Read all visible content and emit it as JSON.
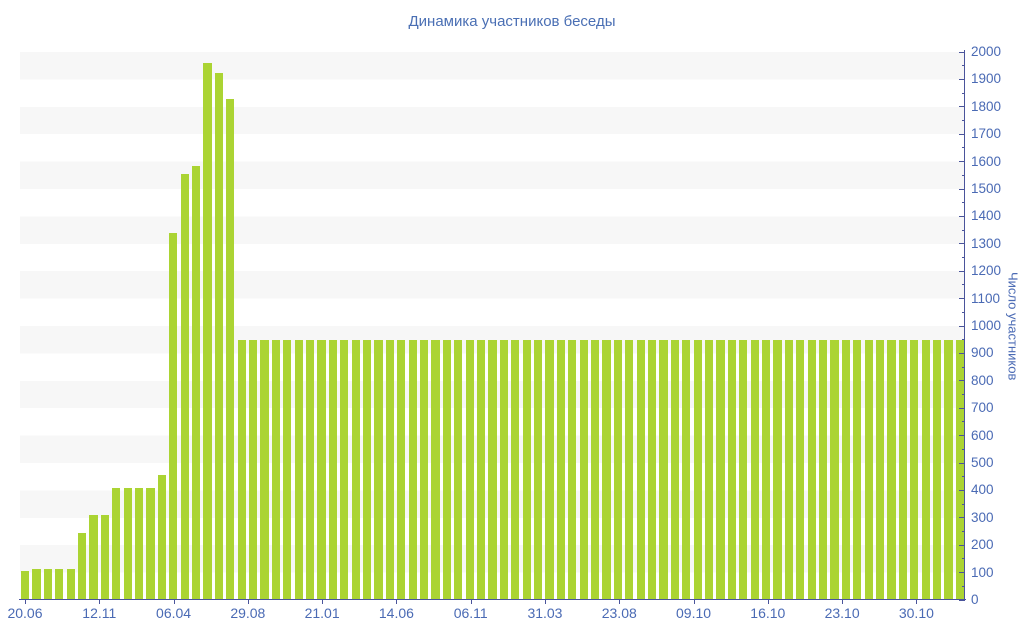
{
  "chart_data": {
    "type": "bar",
    "title": "Динамика участников беседы",
    "xlabel": "",
    "ylabel": "Число участников",
    "ylim": [
      0,
      2000
    ],
    "y_ticks": [
      0,
      100,
      200,
      300,
      400,
      500,
      600,
      700,
      800,
      900,
      1000,
      1100,
      1200,
      1300,
      1400,
      1500,
      1600,
      1700,
      1800,
      1900,
      2000
    ],
    "y_minor_tick_step": 50,
    "grid": "alternating-horizontal-bands",
    "legend": "none",
    "y_axis_position": "right",
    "x_tick_labels": [
      "20.06",
      "12.11",
      "06.04",
      "29.08",
      "21.01",
      "14.06",
      "06.11",
      "31.03",
      "23.08",
      "09.10",
      "16.10",
      "23.10",
      "30.10"
    ],
    "values": [
      105,
      115,
      115,
      115,
      115,
      245,
      310,
      310,
      410,
      410,
      410,
      410,
      455,
      1340,
      1555,
      1585,
      1960,
      1925,
      1830,
      950,
      950,
      950,
      950,
      950,
      950,
      950,
      950,
      950,
      950,
      950,
      950,
      950,
      950,
      950,
      950,
      950,
      950,
      950,
      950,
      950,
      950,
      950,
      950,
      950,
      950,
      950,
      950,
      950,
      950,
      950,
      950,
      950,
      950,
      950,
      950,
      950,
      950,
      950,
      950,
      950,
      950,
      950,
      950,
      950,
      950,
      950,
      950,
      950,
      950,
      950,
      950,
      950,
      950,
      950,
      950,
      950,
      950,
      950,
      950,
      950,
      950,
      950,
      950
    ],
    "colors": {
      "bar": "#abd433",
      "stripe": "#f7f7f7",
      "axis_line": "#4a549b",
      "tick_text": "#4a6ab4",
      "title_text": "#4a6fb4",
      "background": "#ffffff"
    }
  }
}
